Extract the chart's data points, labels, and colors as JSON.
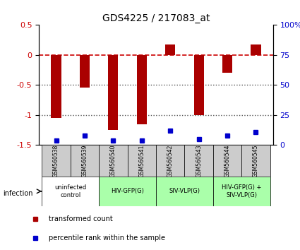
{
  "title": "GDS4225 / 217083_at",
  "samples": [
    "GSM560538",
    "GSM560539",
    "GSM560540",
    "GSM560541",
    "GSM560542",
    "GSM560543",
    "GSM560544",
    "GSM560545"
  ],
  "bar_values": [
    -1.05,
    -0.54,
    -1.25,
    -1.15,
    0.18,
    -1.0,
    -0.3,
    0.17
  ],
  "percentile_values": [
    4,
    8,
    4,
    4,
    12,
    5,
    8,
    11
  ],
  "ylim_left": [
    -1.5,
    0.5
  ],
  "ylim_right": [
    0,
    100
  ],
  "bar_color": "#aa0000",
  "dot_color": "#0000cc",
  "zero_line_color": "#cc0000",
  "dotted_line_color": "#555555",
  "groups": [
    {
      "label": "uninfected\ncontrol",
      "start": 0,
      "end": 2,
      "color": "#ffffff"
    },
    {
      "label": "HIV-GFP(G)",
      "start": 2,
      "end": 4,
      "color": "#aaffaa"
    },
    {
      "label": "SIV-VLP(G)",
      "start": 4,
      "end": 6,
      "color": "#aaffaa"
    },
    {
      "label": "HIV-GFP(G) +\nSIV-VLP(G)",
      "start": 6,
      "end": 8,
      "color": "#aaffaa"
    }
  ],
  "left_ticks": [
    0.5,
    0.0,
    -0.5,
    -1.0,
    -1.5
  ],
  "left_tick_labels": [
    "0.5",
    "0",
    "-0.5",
    "-1",
    "-1.5"
  ],
  "right_ticks": [
    100,
    75,
    50,
    25,
    0
  ],
  "right_tick_labels": [
    "100%",
    "75",
    "50",
    "25",
    "0"
  ],
  "legend_items": [
    {
      "label": "transformed count",
      "color": "#aa0000"
    },
    {
      "label": "percentile rank within the sample",
      "color": "#0000cc"
    }
  ]
}
